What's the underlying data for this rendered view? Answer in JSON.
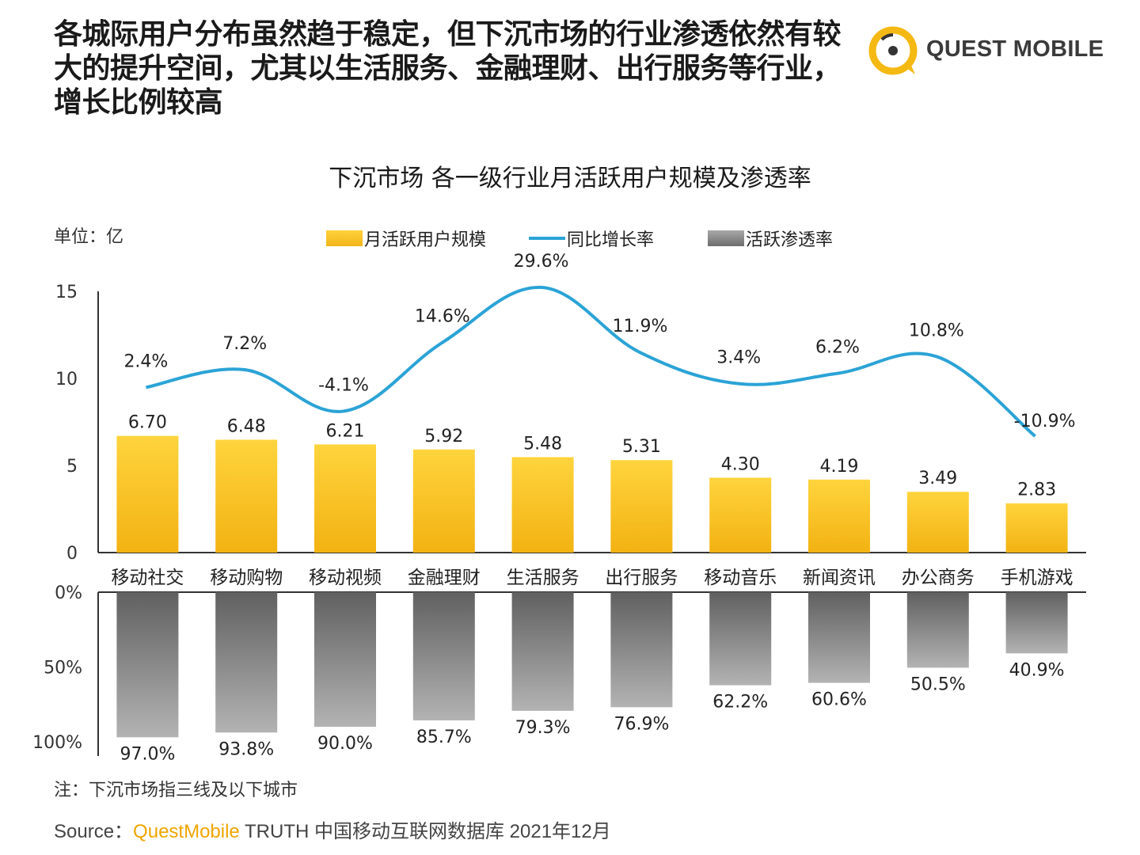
{
  "headline": "各城际用户分布虽然趋于稳定，但下沉市场的行业渗透依然有较大的提升空间，尤其以生活服务、金融理财、出行服务等行业，增长比例较高",
  "logo": {
    "text": "QUEST MOBILE",
    "icon": "quest-mobile-logo-icon"
  },
  "colors": {
    "bar": "#f5b914",
    "line": "#2ba3d6",
    "gray": "#7a7a7a"
  },
  "chart_data": {
    "type": "bar",
    "title": "下沉市场 各一级行业月活跃用户规模及渗透率",
    "unit_label": "单位：亿",
    "categories": [
      "移动社交",
      "移动购物",
      "移动视频",
      "金融理财",
      "生活服务",
      "出行服务",
      "移动音乐",
      "新闻资讯",
      "办公商务",
      "手机游戏"
    ],
    "series": [
      {
        "name": "月活跃用户规模",
        "type": "bar",
        "values": [
          6.7,
          6.48,
          6.21,
          5.92,
          5.48,
          5.31,
          4.3,
          4.19,
          3.49,
          2.83
        ],
        "labels": [
          "6.70",
          "6.48",
          "6.21",
          "5.92",
          "5.48",
          "5.31",
          "4.30",
          "4.19",
          "3.49",
          "2.83"
        ]
      },
      {
        "name": "同比增长率",
        "type": "line",
        "values": [
          2.4,
          7.2,
          -4.1,
          14.6,
          29.6,
          11.9,
          3.4,
          6.2,
          10.8,
          -10.9
        ],
        "labels": [
          "2.4%",
          "7.2%",
          "-4.1%",
          "14.6%",
          "29.6%",
          "11.9%",
          "3.4%",
          "6.2%",
          "10.8%",
          "-10.9%"
        ]
      },
      {
        "name": "活跃渗透率",
        "type": "bar",
        "values": [
          97.0,
          93.8,
          90.0,
          85.7,
          79.3,
          76.9,
          62.2,
          60.6,
          50.5,
          40.9
        ],
        "labels": [
          "97.0%",
          "93.8%",
          "90.0%",
          "85.7%",
          "79.3%",
          "76.9%",
          "62.2%",
          "60.6%",
          "50.5%",
          "40.9%"
        ]
      }
    ],
    "y_upper": {
      "ticks": [
        "0",
        "5",
        "10",
        "15"
      ],
      "tick_values": [
        0,
        5,
        10,
        15
      ],
      "ylim": [
        0,
        15
      ]
    },
    "y_lower": {
      "ticks": [
        "0%",
        "50%",
        "100%"
      ],
      "tick_values": [
        0,
        50,
        100
      ],
      "ylim": [
        0,
        100
      ],
      "inverted": true
    },
    "legend_position": "top"
  },
  "footer": {
    "note": "注：下沉市场指三线及以下城市",
    "source_prefix": "Source：",
    "source_brand": "QuestMobile",
    "source_rest": " TRUTH 中国移动互联网数据库 2021年12月"
  }
}
